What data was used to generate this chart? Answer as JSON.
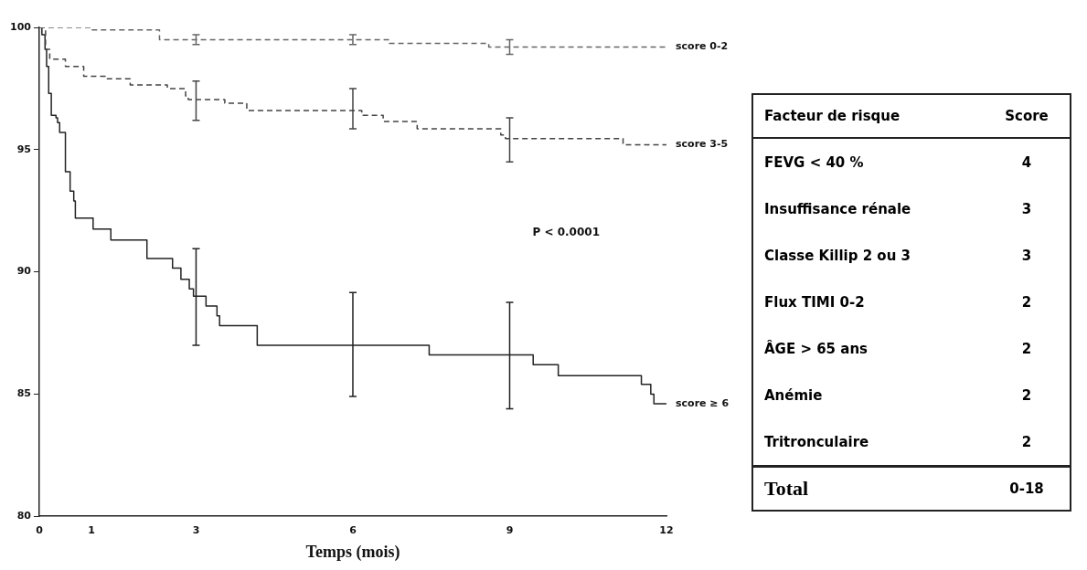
{
  "chart_data": [
    {
      "type": "step",
      "xlabel": "Temps (mois)",
      "xlim": [
        0,
        12
      ],
      "xticks": [
        0,
        1,
        3,
        6,
        9,
        12
      ],
      "ylim": [
        80,
        100
      ],
      "yticks": [
        80,
        85,
        90,
        95,
        100
      ],
      "grid": false,
      "marker": "none",
      "annotations": [
        "P < 0.0001"
      ],
      "series": [
        {
          "name": "score 0-2",
          "color": "#666666",
          "line_style": "dashed",
          "x": [
            0,
            1.0,
            2.3,
            3,
            6,
            6.7,
            8.6,
            9,
            12
          ],
          "values": [
            100,
            99.9,
            99.5,
            99.5,
            99.5,
            99.35,
            99.2,
            99.2,
            99.2
          ],
          "errors": [
            null,
            null,
            null,
            0.2,
            0.2,
            null,
            null,
            0.3,
            null
          ]
        },
        {
          "name": "score 3-5",
          "color": "#444444",
          "line_style": "dashed",
          "x": [
            0,
            0.12,
            0.2,
            0.5,
            0.85,
            1.26,
            1.74,
            2.45,
            2.8,
            2.85,
            3,
            3.55,
            3.97,
            6,
            6.17,
            6.58,
            7.23,
            8.83,
            8.92,
            9,
            11.17,
            12
          ],
          "values": [
            100,
            99.1,
            98.7,
            98.4,
            98.0,
            97.9,
            97.65,
            97.5,
            97.2,
            97.05,
            97.05,
            96.9,
            96.6,
            96.6,
            96.4,
            96.15,
            95.85,
            95.6,
            95.45,
            95.45,
            95.2,
            95.2
          ],
          "errors": [
            null,
            null,
            null,
            null,
            null,
            null,
            null,
            null,
            null,
            null,
            [
              96.2,
              97.8
            ],
            null,
            null,
            [
              95.85,
              97.5
            ],
            null,
            null,
            null,
            null,
            null,
            [
              94.5,
              96.3
            ],
            null,
            null
          ]
        },
        {
          "name": "score ≥ 6",
          "color": "#222222",
          "line_style": "solid",
          "x": [
            0,
            0.05,
            0.11,
            0.14,
            0.18,
            0.23,
            0.32,
            0.35,
            0.39,
            0.5,
            0.59,
            0.66,
            0.69,
            1.03,
            1.37,
            2.06,
            2.55,
            2.71,
            2.87,
            2.95,
            3,
            3.19,
            3.4,
            3.45,
            4.17,
            6,
            7.46,
            9,
            9.45,
            9.93,
            11.52,
            11.7,
            11.76,
            12
          ],
          "values": [
            100,
            99.7,
            99.1,
            98.4,
            97.3,
            96.4,
            96.3,
            96.1,
            95.7,
            94.1,
            93.3,
            92.9,
            92.2,
            91.75,
            91.3,
            90.55,
            90.15,
            89.7,
            89.3,
            89.0,
            89.0,
            88.6,
            88.2,
            87.8,
            87.0,
            87.0,
            86.6,
            86.6,
            86.2,
            85.75,
            85.4,
            85.0,
            84.6,
            84.6
          ],
          "errors": [
            null,
            null,
            null,
            null,
            null,
            null,
            null,
            null,
            null,
            null,
            null,
            null,
            null,
            null,
            null,
            null,
            null,
            null,
            null,
            null,
            [
              87.0,
              90.95
            ],
            null,
            null,
            null,
            null,
            [
              84.9,
              89.15
            ],
            null,
            [
              84.4,
              88.75
            ],
            null,
            null,
            null,
            null,
            null,
            null
          ]
        }
      ]
    },
    {
      "type": "other",
      "xlabel": "Facteur de risque",
      "ylabel": "Score",
      "data_labels": true,
      "categories": [
        "FEVG  < 40 %",
        "Insuffisance rénale",
        "Classe Killip 2 ou 3",
        "Flux TIMI 0-2",
        "ÂGE > 65 ans",
        "Anémie",
        "Tritronculaire"
      ],
      "values": [
        4,
        3,
        3,
        2,
        2,
        2,
        2
      ],
      "annotations": [
        "Total",
        "0-18"
      ]
    }
  ]
}
